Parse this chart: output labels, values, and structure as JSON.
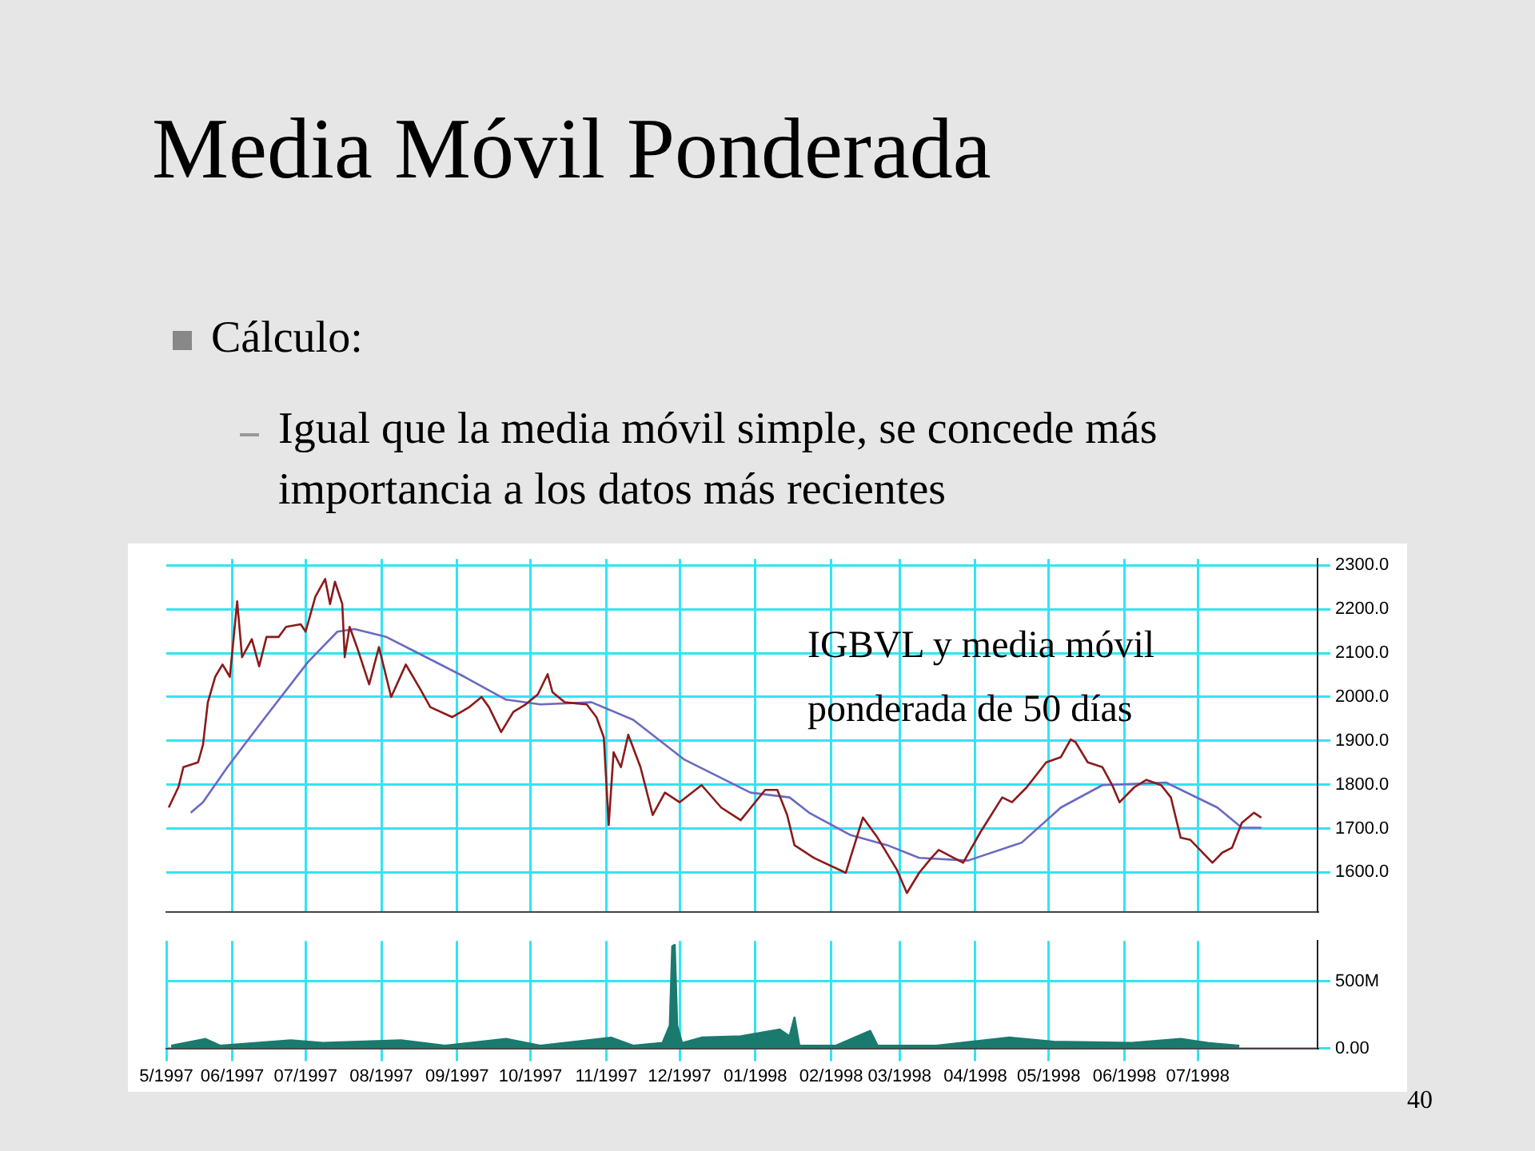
{
  "chart_data": [
    {
      "type": "line",
      "title": "Media Móvil Ponderada",
      "annotations": [
        "Cálculo:",
        "Igual que la media móvil simple, se concede más importancia a los datos más recientes",
        "IGBVL y media móvil ponderada de 50 días",
        "40"
      ],
      "xlim": [
        "1997-05-05",
        "1998-08-19"
      ],
      "xticks": [
        {
          "value": "1997-06",
          "label": null
        },
        {
          "value": "1997-07",
          "label": null
        },
        {
          "value": "1997-08",
          "label": null
        },
        {
          "value": "1997-09",
          "label": null
        },
        {
          "value": "1997-10",
          "label": null
        },
        {
          "value": "1997-11",
          "label": null
        },
        {
          "value": "1997-12",
          "label": null
        },
        {
          "value": "1998-01",
          "label": null
        },
        {
          "value": "1998-02",
          "label": null
        },
        {
          "value": "1998-03",
          "label": null
        },
        {
          "value": "1998-04",
          "label": null
        },
        {
          "value": "1998-05",
          "label": null
        },
        {
          "value": "1998-06",
          "label": null
        },
        {
          "value": "1998-07",
          "label": null
        }
      ],
      "ylim": [
        1510,
        2315
      ],
      "yticks": [
        {
          "value": 1600,
          "label": "1600.0"
        },
        {
          "value": 1700,
          "label": "1700.0"
        },
        {
          "value": 1800,
          "label": "1800.0"
        },
        {
          "value": 1900,
          "label": "1900.0"
        },
        {
          "value": 2000,
          "label": "2000.0"
        },
        {
          "value": 2100,
          "label": "2100.0"
        },
        {
          "value": 2200,
          "label": "2200.0"
        },
        {
          "value": 2300,
          "label": "2300.0"
        }
      ],
      "grid": true,
      "tick_labels": "y",
      "series": [
        {
          "color": "#8b1a1a",
          "x": [
            "1997-05-06",
            "1997-05-10",
            "1997-05-12",
            "1997-05-18",
            "1997-05-20",
            "1997-05-22",
            "1997-05-25",
            "1997-05-28",
            "1997-05-31",
            "1997-06-03",
            "1997-06-05",
            "1997-06-09",
            "1997-06-12",
            "1997-06-15",
            "1997-06-20",
            "1997-06-23",
            "1997-06-29",
            "1997-07-01",
            "1997-07-05",
            "1997-07-09",
            "1997-07-11",
            "1997-07-13",
            "1997-07-16",
            "1997-07-17",
            "1997-07-19",
            "1997-07-22",
            "1997-07-27",
            "1997-07-31",
            "1997-08-05",
            "1997-08-11",
            "1997-08-17",
            "1997-08-21",
            "1997-08-30",
            "1997-09-06",
            "1997-09-11",
            "1997-09-14",
            "1997-09-19",
            "1997-09-24",
            "1997-09-29",
            "1997-10-04",
            "1997-10-08",
            "1997-10-10",
            "1997-10-15",
            "1997-10-24",
            "1997-10-28",
            "1997-10-31",
            "1997-11-02",
            "1997-11-04",
            "1997-11-07",
            "1997-11-10",
            "1997-11-15",
            "1997-11-20",
            "1997-11-25",
            "1997-12-01",
            "1997-12-10",
            "1997-12-18",
            "1997-12-26",
            "1998-01-05",
            "1998-01-10",
            "1998-01-14",
            "1998-01-17",
            "1998-01-25",
            "1998-02-07",
            "1998-02-14",
            "1998-02-20",
            "1998-02-28",
            "1998-03-04",
            "1998-03-09",
            "1998-03-14",
            "1998-03-17",
            "1998-03-27",
            "1998-04-03",
            "1998-04-12",
            "1998-04-16",
            "1998-04-22",
            "1998-04-30",
            "1998-05-06",
            "1998-05-10",
            "1998-05-12",
            "1998-05-17",
            "1998-05-23",
            "1998-05-27",
            "1998-05-30",
            "1998-06-05",
            "1998-06-10",
            "1998-06-16",
            "1998-06-20",
            "1998-06-24",
            "1998-06-28",
            "1998-07-07",
            "1998-07-11",
            "1998-07-15",
            "1998-07-19",
            "1998-07-24",
            "1998-07-27"
          ],
          "values": [
            1748,
            1795,
            1840,
            1851,
            1891,
            1988,
            2046,
            2074,
            2046,
            2218,
            2091,
            2132,
            2070,
            2137,
            2137,
            2160,
            2166,
            2149,
            2229,
            2269,
            2212,
            2263,
            2212,
            2091,
            2160,
            2114,
            2029,
            2114,
            2000,
            2074,
            2017,
            1977,
            1954,
            1977,
            2000,
            1977,
            1920,
            1966,
            1983,
            2006,
            2052,
            2011,
            1988,
            1983,
            1954,
            1908,
            1708,
            1874,
            1840,
            1914,
            1840,
            1731,
            1782,
            1760,
            1799,
            1748,
            1719,
            1788,
            1788,
            1731,
            1662,
            1633,
            1599,
            1725,
            1679,
            1605,
            1553,
            1599,
            1633,
            1651,
            1622,
            1691,
            1771,
            1760,
            1794,
            1851,
            1863,
            1903,
            1897,
            1851,
            1840,
            1799,
            1760,
            1794,
            1811,
            1799,
            1771,
            1679,
            1674,
            1622,
            1645,
            1656,
            1713,
            1736,
            1725
          ]
        },
        {
          "color": "#6a6ac0",
          "x": [
            "1997-05-15",
            "1997-05-20",
            "1997-05-30",
            "1997-06-13",
            "1997-07-02",
            "1997-07-14",
            "1997-07-21",
            "1997-08-03",
            "1997-08-15",
            "1997-09-04",
            "1997-09-21",
            "1997-10-05",
            "1997-10-26",
            "1997-11-12",
            "1997-12-03",
            "1997-12-30",
            "1998-01-15",
            "1998-01-23",
            "1998-02-09",
            "1998-02-24",
            "1998-03-09",
            "1998-03-29",
            "1998-04-20",
            "1998-05-06",
            "1998-05-23",
            "1998-06-18",
            "1998-07-09",
            "1998-07-19",
            "1998-07-27"
          ],
          "values": [
            1736,
            1760,
            1840,
            1943,
            2080,
            2149,
            2155,
            2137,
            2103,
            2046,
            1994,
            1983,
            1988,
            1948,
            1857,
            1782,
            1771,
            1736,
            1685,
            1662,
            1633,
            1627,
            1668,
            1748,
            1799,
            1805,
            1748,
            1702,
            1702
          ]
        }
      ]
    },
    {
      "type": "area",
      "xlim": [
        "1997-05-05",
        "1998-08-19"
      ],
      "xticks": [
        {
          "value": "1997-05-05",
          "label": "5/1997"
        },
        {
          "value": "1997-06",
          "label": "06/1997"
        },
        {
          "value": "1997-07",
          "label": "07/1997"
        },
        {
          "value": "1997-08",
          "label": "08/1997"
        },
        {
          "value": "1997-09",
          "label": "09/1997"
        },
        {
          "value": "1997-10",
          "label": "10/1997"
        },
        {
          "value": "1997-11",
          "label": "11/1997"
        },
        {
          "value": "1997-12",
          "label": "12/1997"
        },
        {
          "value": "1998-01",
          "label": "01/1998"
        },
        {
          "value": "1998-02",
          "label": "02/1998"
        },
        {
          "value": "1998-03",
          "label": "03/1998"
        },
        {
          "value": "1998-04",
          "label": "04/1998"
        },
        {
          "value": "1998-05",
          "label": "05/1998"
        },
        {
          "value": "1998-06",
          "label": "06/1998"
        },
        {
          "value": "1998-07",
          "label": "07/1998"
        }
      ],
      "ylim": [
        0,
        800
      ],
      "yticks": [
        {
          "value": 0,
          "label": "0.00"
        },
        {
          "value": 500,
          "label": "500M"
        }
      ],
      "grid": true,
      "series": [
        {
          "color": "#1a7a6e",
          "x": [
            "1997-05-07",
            "1997-05-21",
            "1997-05-27",
            "1997-06-25",
            "1997-07-08",
            "1997-08-09",
            "1997-08-27",
            "1997-09-21",
            "1997-10-05",
            "1997-11-03",
            "1997-11-12",
            "1997-11-24",
            "1997-11-27",
            "1997-11-28",
            "1997-11-29",
            "1997-11-30",
            "1997-12-02",
            "1997-12-10",
            "1997-12-26",
            "1998-01-11",
            "1998-01-15",
            "1998-01-17",
            "1998-01-19",
            "1998-02-03",
            "1998-02-17",
            "1998-02-20",
            "1998-03-16",
            "1998-04-15",
            "1998-05-03",
            "1998-06-04",
            "1998-06-24",
            "1998-07-05",
            "1998-07-18"
          ],
          "values": [
            20,
            70,
            20,
            60,
            40,
            60,
            20,
            70,
            20,
            80,
            20,
            40,
            170,
            760,
            770,
            170,
            40,
            80,
            90,
            140,
            90,
            230,
            20,
            20,
            130,
            20,
            20,
            80,
            50,
            40,
            70,
            40,
            20
          ]
        }
      ]
    }
  ]
}
